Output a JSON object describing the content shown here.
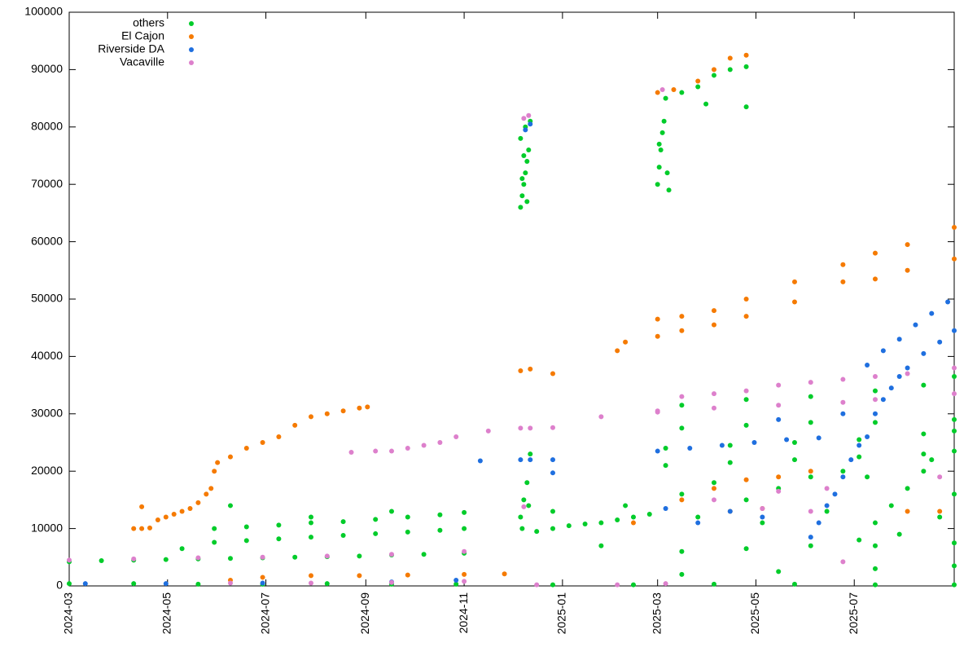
{
  "chart_data": {
    "type": "scatter",
    "xlim": [
      0,
      549
    ],
    "ylim": [
      0,
      100000
    ],
    "xticks": [
      {
        "value": 0,
        "label": "2024-03"
      },
      {
        "value": 61,
        "label": "2024-05"
      },
      {
        "value": 122,
        "label": "2024-07"
      },
      {
        "value": 184,
        "label": "2024-09"
      },
      {
        "value": 245,
        "label": "2024-11"
      },
      {
        "value": 306,
        "label": "2025-01"
      },
      {
        "value": 365,
        "label": "2025-03"
      },
      {
        "value": 426,
        "label": "2025-05"
      },
      {
        "value": 487,
        "label": "2025-07"
      }
    ],
    "yticks": [
      0,
      10000,
      20000,
      30000,
      40000,
      50000,
      60000,
      70000,
      80000,
      90000,
      100000
    ],
    "legend": "top-left",
    "series": [
      {
        "name": "others",
        "color": "#00cc2a",
        "x": [
          0,
          20,
          40,
          60,
          80,
          100,
          120,
          140,
          160,
          180,
          200,
          220,
          245,
          0,
          40,
          80,
          120,
          160,
          200,
          240,
          300,
          350,
          400,
          450,
          500,
          549,
          90,
          110,
          130,
          150,
          170,
          190,
          210,
          230,
          245,
          90,
          110,
          130,
          150,
          170,
          190,
          210,
          230,
          245,
          100,
          70,
          150,
          200,
          280,
          281,
          282,
          283,
          284,
          285,
          280,
          283,
          286,
          281,
          284,
          282,
          280,
          282,
          284,
          286,
          281,
          285,
          290,
          300,
          310,
          320,
          330,
          340,
          350,
          360,
          300,
          330,
          345,
          365,
          366,
          367,
          368,
          369,
          370,
          371,
          372,
          366,
          380,
          390,
          400,
          410,
          420,
          420,
          395,
          370,
          410,
          450,
          490,
          530,
          549,
          370,
          410,
          450,
          490,
          530,
          549,
          380,
          420,
          460,
          500,
          530,
          549,
          380,
          420,
          460,
          500,
          549,
          490,
          500,
          510,
          520,
          530,
          540,
          549,
          495,
          515,
          535,
          380,
          400,
          420,
          440,
          460,
          480,
          390,
          430,
          470,
          380,
          420,
          460,
          500,
          549,
          380,
          440,
          500,
          549
        ],
        "values": [
          4200,
          4400,
          4500,
          4600,
          4700,
          4800,
          4900,
          5000,
          5100,
          5200,
          5400,
          5500,
          5700,
          400,
          400,
          300,
          300,
          400,
          300,
          300,
          200,
          200,
          300,
          300,
          200,
          200,
          10000,
          10300,
          10600,
          11000,
          11200,
          11600,
          12000,
          12400,
          12800,
          7600,
          7900,
          8200,
          8500,
          8800,
          9100,
          9400,
          9700,
          10000,
          14000,
          6500,
          12000,
          13000,
          66000,
          68000,
          70000,
          72000,
          74000,
          76000,
          78000,
          80000,
          81000,
          71000,
          67000,
          75000,
          12000,
          15000,
          18000,
          23000,
          10000,
          14000,
          9500,
          10000,
          10500,
          10800,
          11000,
          11500,
          12000,
          12500,
          13000,
          7000,
          14000,
          70000,
          73000,
          76000,
          79000,
          81000,
          85000,
          72000,
          69000,
          77000,
          86000,
          87000,
          89000,
          90000,
          90500,
          83500,
          84000,
          21000,
          21500,
          22000,
          22500,
          23000,
          23500,
          24000,
          24500,
          25000,
          25500,
          26500,
          27000,
          31500,
          32500,
          33000,
          34000,
          35000,
          36500,
          27500,
          28000,
          28500,
          28500,
          29000,
          8000,
          11000,
          14000,
          17000,
          20000,
          12000,
          16000,
          19000,
          9000,
          22000,
          16000,
          18000,
          15000,
          17000,
          19000,
          20000,
          12000,
          11000,
          13000,
          6000,
          6500,
          7000,
          7000,
          7500,
          2000,
          2500,
          3000,
          3500
        ]
      },
      {
        "name": "El Cajon",
        "color": "#f57a00",
        "x": [
          40,
          45,
          50,
          55,
          60,
          65,
          70,
          75,
          80,
          85,
          88,
          90,
          92,
          100,
          110,
          120,
          130,
          140,
          150,
          160,
          170,
          180,
          185,
          45,
          100,
          120,
          150,
          180,
          210,
          245,
          270,
          280,
          286,
          300,
          340,
          345,
          365,
          380,
          400,
          420,
          450,
          480,
          500,
          520,
          549,
          365,
          380,
          400,
          420,
          450,
          480,
          500,
          520,
          549,
          365,
          375,
          390,
          400,
          410,
          420,
          380,
          400,
          420,
          440,
          460,
          410,
          430,
          520,
          540,
          350
        ],
        "values": [
          10000,
          10000,
          10100,
          11500,
          12000,
          12500,
          13000,
          13500,
          14500,
          16000,
          17000,
          20000,
          21500,
          22500,
          24000,
          25000,
          26000,
          28000,
          29500,
          30000,
          30500,
          31000,
          31200,
          13800,
          1000,
          1500,
          1800,
          1800,
          1900,
          2000,
          2100,
          37500,
          37800,
          37000,
          41000,
          42500,
          46500,
          47000,
          48000,
          50000,
          53000,
          56000,
          58000,
          59500,
          62500,
          43500,
          44500,
          45500,
          47000,
          49500,
          53000,
          53500,
          55000,
          57000,
          86000,
          86500,
          88000,
          90000,
          92000,
          92500,
          15000,
          17000,
          18500,
          19000,
          20000,
          13000,
          13500,
          13000,
          13000,
          11000
        ]
      },
      {
        "name": "Riverside DA",
        "color": "#1f6fdf",
        "x": [
          10,
          60,
          120,
          200,
          240,
          255,
          280,
          286,
          300,
          283,
          286,
          300,
          365,
          385,
          405,
          425,
          445,
          465,
          460,
          465,
          470,
          475,
          480,
          485,
          490,
          495,
          500,
          505,
          510,
          515,
          520,
          530,
          540,
          549,
          495,
          505,
          515,
          525,
          535,
          545,
          370,
          390,
          410,
          430,
          440,
          480
        ],
        "values": [
          400,
          400,
          500,
          700,
          1000,
          21800,
          22000,
          22000,
          22000,
          79500,
          80500,
          19700,
          23500,
          24000,
          24500,
          25000,
          25500,
          25800,
          8500,
          11000,
          14000,
          16000,
          19000,
          22000,
          24500,
          26000,
          30000,
          32500,
          34500,
          36500,
          38000,
          40500,
          42500,
          44500,
          38500,
          41000,
          43000,
          45500,
          47500,
          49500,
          13500,
          11000,
          13000,
          12000,
          29000,
          30000
        ]
      },
      {
        "name": "Vacaville",
        "color": "#dd80cc",
        "x": [
          0,
          40,
          80,
          120,
          160,
          200,
          245,
          100,
          150,
          200,
          245,
          290,
          340,
          370,
          175,
          190,
          200,
          210,
          220,
          230,
          240,
          260,
          280,
          286,
          300,
          330,
          282,
          285,
          368,
          365,
          380,
          400,
          420,
          440,
          460,
          480,
          500,
          520,
          549,
          365,
          400,
          440,
          480,
          500,
          549,
          282,
          400,
          440,
          470,
          430,
          480,
          460,
          540
        ],
        "values": [
          4500,
          4700,
          4900,
          5000,
          5200,
          5500,
          6000,
          500,
          500,
          600,
          800,
          200,
          200,
          400,
          23300,
          23500,
          23500,
          24000,
          24500,
          25000,
          26000,
          27000,
          27500,
          27500,
          27600,
          29500,
          81500,
          82000,
          86500,
          30500,
          33000,
          33500,
          34000,
          35000,
          35500,
          36000,
          36500,
          37000,
          38000,
          30300,
          31000,
          31500,
          32000,
          32500,
          33500,
          13800,
          15000,
          16500,
          17000,
          13500,
          4200,
          13000,
          19000
        ]
      }
    ]
  }
}
